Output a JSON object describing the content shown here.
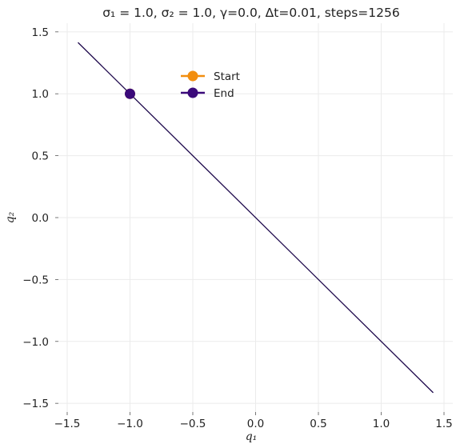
{
  "chart_data": {
    "type": "line",
    "title": "σ₁ = 1.0, σ₂ = 1.0, γ=0.0, Δt=0.01, steps=1256",
    "xlabel": "q₁",
    "ylabel": "q₂",
    "xlim": [
      -1.57,
      1.57
    ],
    "ylim": [
      -1.57,
      1.57
    ],
    "xticks": [
      -1.5,
      -1.0,
      -0.5,
      0.0,
      0.5,
      1.0,
      1.5
    ],
    "yticks": [
      -1.5,
      -1.0,
      -0.5,
      0.0,
      0.5,
      1.0,
      1.5
    ],
    "xtick_labels": [
      "−1.5",
      "−1.0",
      "−0.5",
      "0.0",
      "0.5",
      "1.0",
      "1.5"
    ],
    "ytick_labels": [
      "−1.5",
      "−1.0",
      "−0.5",
      "0.0",
      "0.5",
      "1.0",
      "1.5"
    ],
    "grid": true,
    "legend_position": "top-center",
    "series": [
      {
        "color": "#1f0a4d",
        "x": [
          -1.414,
          1.414
        ],
        "y": [
          1.414,
          -1.414
        ]
      }
    ],
    "markers": [
      {
        "name": "Start",
        "x": -1.0,
        "y": 1.0,
        "color": "#f28e0f"
      },
      {
        "name": "End",
        "x": -1.0,
        "y": 1.0,
        "color": "#3b0a7a"
      }
    ]
  }
}
